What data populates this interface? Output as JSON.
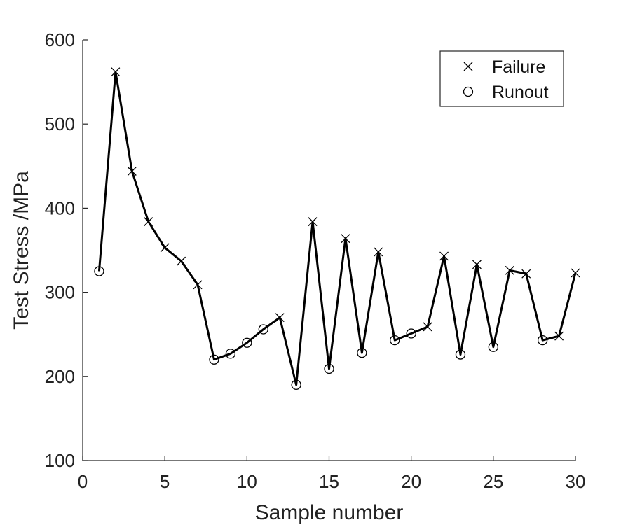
{
  "chart_data": {
    "type": "line",
    "title": "",
    "xlabel": "Sample number",
    "ylabel": "Test Stress /MPa",
    "xlim": [
      0,
      30
    ],
    "ylim": [
      100,
      600
    ],
    "xticks": [
      0,
      5,
      10,
      15,
      20,
      25,
      30
    ],
    "yticks": [
      100,
      200,
      300,
      400,
      500,
      600
    ],
    "grid": false,
    "legend_position": "top-right",
    "line_color": "#000000",
    "x": [
      1,
      2,
      3,
      4,
      5,
      6,
      7,
      8,
      9,
      10,
      11,
      12,
      13,
      14,
      15,
      16,
      17,
      18,
      19,
      20,
      21,
      22,
      23,
      24,
      25,
      26,
      27,
      28,
      29,
      30
    ],
    "y": [
      325,
      562,
      444,
      384,
      353,
      337,
      309,
      220,
      227,
      240,
      256,
      270,
      190,
      384,
      209,
      364,
      228,
      348,
      243,
      251,
      259,
      343,
      226,
      333,
      235,
      326,
      322,
      243,
      248,
      323
    ],
    "outcome": [
      "Runout",
      "Failure",
      "Failure",
      "Failure",
      "Failure",
      "Failure",
      "Failure",
      "Runout",
      "Runout",
      "Runout",
      "Runout",
      "Failure",
      "Runout",
      "Failure",
      "Runout",
      "Failure",
      "Runout",
      "Failure",
      "Runout",
      "Runout",
      "Failure",
      "Failure",
      "Runout",
      "Failure",
      "Runout",
      "Failure",
      "Failure",
      "Runout",
      "Failure",
      "Failure"
    ],
    "legend": [
      {
        "label": "Failure",
        "marker": "x-mark"
      },
      {
        "label": "Runout",
        "marker": "circle-mark"
      }
    ]
  }
}
